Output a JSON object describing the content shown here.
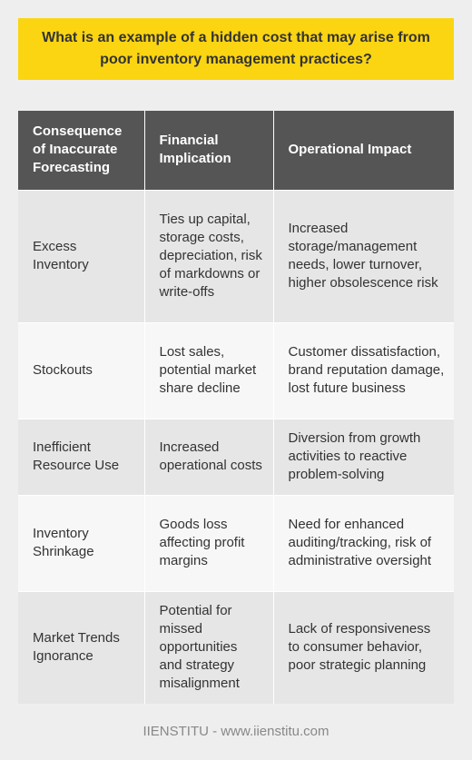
{
  "title": "What is an example of a hidden cost that may arise from poor inventory management practices?",
  "table": {
    "headers": [
      "Consequence of Inaccurate Forecasting",
      "Financial Implication",
      "Operational Impact"
    ],
    "rows": [
      {
        "consequence": "Excess Inventory",
        "financial": "Ties up capital, storage costs, depreciation, risk of markdowns or write-offs",
        "operational": "Increased storage/management needs, lower turnover, higher obsolescence risk"
      },
      {
        "consequence": "Stockouts",
        "financial": "Lost sales, potential market share decline",
        "operational": "Customer dissatisfaction, brand reputation damage, lost future business"
      },
      {
        "consequence": "Inefficient Resource Use",
        "financial": "Increased operational costs",
        "operational": "Diversion from growth activities to reactive problem-solving"
      },
      {
        "consequence": "Inventory Shrinkage",
        "financial": "Goods loss affecting profit margins",
        "operational": "Need for enhanced auditing/tracking, risk of administrative oversight"
      },
      {
        "consequence": "Market Trends Ignorance",
        "financial": "Potential for missed opportunities and strategy misalignment",
        "operational": "Lack of responsiveness to consumer behavior, poor strategic planning"
      }
    ]
  },
  "footer": "IIENSTITU - www.iienstitu.com"
}
